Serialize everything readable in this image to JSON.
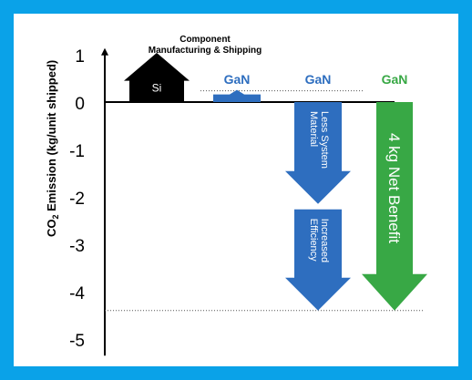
{
  "chart_data": {
    "type": "bar",
    "title": "",
    "ylabel_main": "CO",
    "ylabel_sub": "2",
    "ylabel_rest": " Emission (kg/unit shipped)",
    "ylim": [
      -5,
      1
    ],
    "yticks": [
      1,
      0,
      -1,
      -2,
      -3,
      -4,
      -5
    ],
    "grid": false,
    "bars": [
      {
        "label": "Si",
        "caption": [
          "Component",
          "Manufacturing & Shipping"
        ],
        "value": 1.0,
        "color": "#000000",
        "label_color": "#ffffff"
      },
      {
        "label": "GaN",
        "value": 0.2,
        "color": "#2e6ebf",
        "label_color": "#2e6ebf"
      },
      {
        "label": "GaN",
        "segments": [
          {
            "from": 0,
            "to": -2.15,
            "text": [
              "Less System",
              "Material"
            ]
          },
          {
            "from": -2.15,
            "to": -4.4,
            "text": [
              "Increased",
              "Efficiency"
            ]
          }
        ],
        "color": "#2e6ebf",
        "label_color": "#2e6ebf"
      },
      {
        "label": "GaN",
        "value": -4.4,
        "text": "4 kg Net Benefit",
        "color": "#38a845",
        "label_color": "#38a845"
      }
    ],
    "reference_lines": [
      0.2,
      -4.4
    ]
  }
}
